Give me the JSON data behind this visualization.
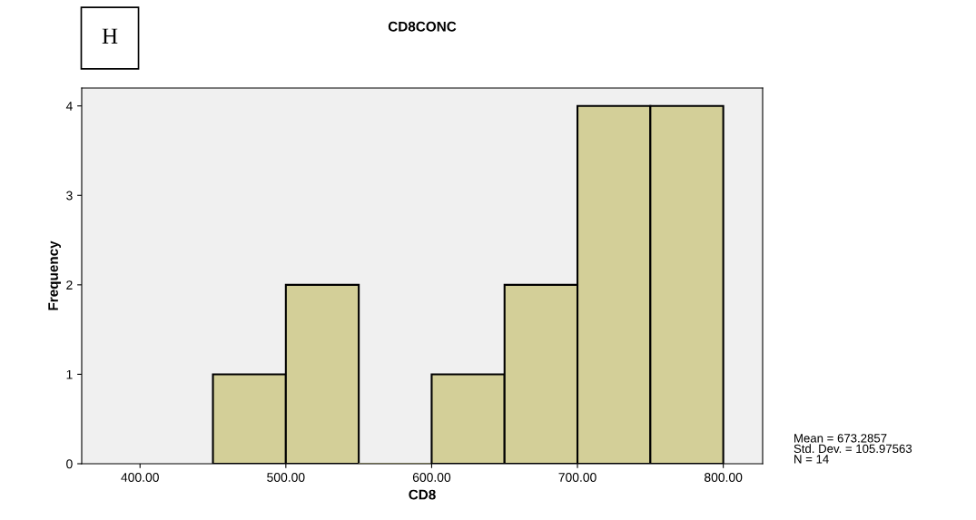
{
  "chart_data": {
    "type": "histogram",
    "title": "CD8CONC",
    "xlabel": "CD8",
    "ylabel": "Frequency",
    "bins": [
      450,
      500,
      550,
      600,
      650,
      700,
      750,
      800
    ],
    "values": [
      1,
      2,
      0,
      1,
      2,
      4,
      4
    ],
    "color": "#d3cf98",
    "xlim": [
      360,
      827
    ],
    "xticks": [
      {
        "value": 400,
        "label": "400.00"
      },
      {
        "value": 500,
        "label": "500.00"
      },
      {
        "value": 600,
        "label": "600.00"
      },
      {
        "value": 700,
        "label": "700.00"
      },
      {
        "value": 800,
        "label": "800.00"
      }
    ],
    "ylim": [
      0,
      4.2
    ],
    "yticks": [
      0,
      1,
      2,
      3,
      4
    ],
    "grid": false,
    "legend": false,
    "annotations": [
      "H",
      "Mean = 673.2857",
      "Std. Dev. = 105.97563",
      "N = 14"
    ]
  }
}
